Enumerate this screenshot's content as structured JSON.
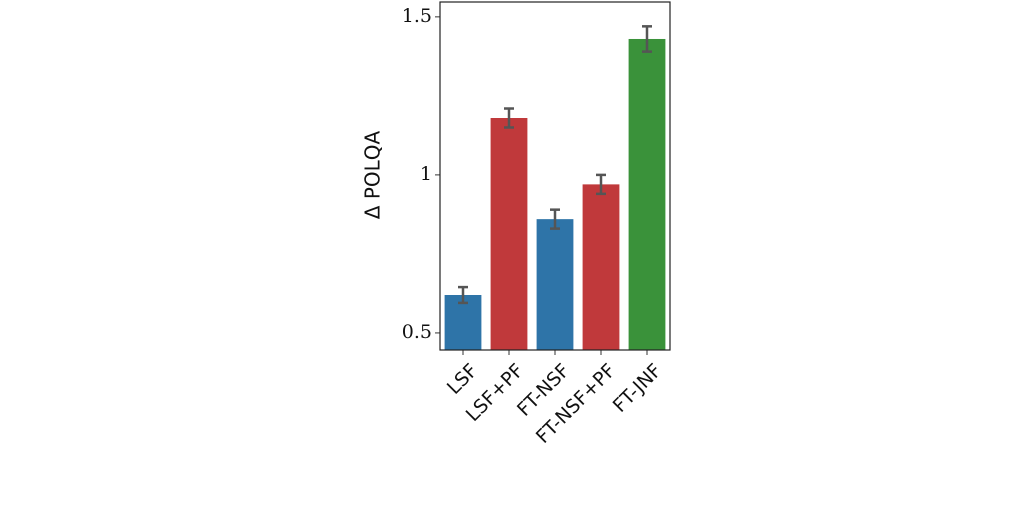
{
  "chart_data": {
    "type": "bar",
    "ylabel": "Δ POLQA",
    "categories": [
      "LSF",
      "LSF+PF",
      "FT-NSF",
      "FT-NSF+PF",
      "FT-JNF"
    ],
    "values": [
      0.62,
      1.18,
      0.86,
      0.97,
      1.43
    ],
    "errors": [
      0.025,
      0.03,
      0.03,
      0.03,
      0.04
    ],
    "colors": [
      "#2e74a8",
      "#c0393b",
      "#2e74a8",
      "#c0393b",
      "#3a923a"
    ],
    "ylim": [
      0.446,
      1.547
    ],
    "yticks": [
      0.5,
      1,
      1.5
    ],
    "grid": false
  }
}
